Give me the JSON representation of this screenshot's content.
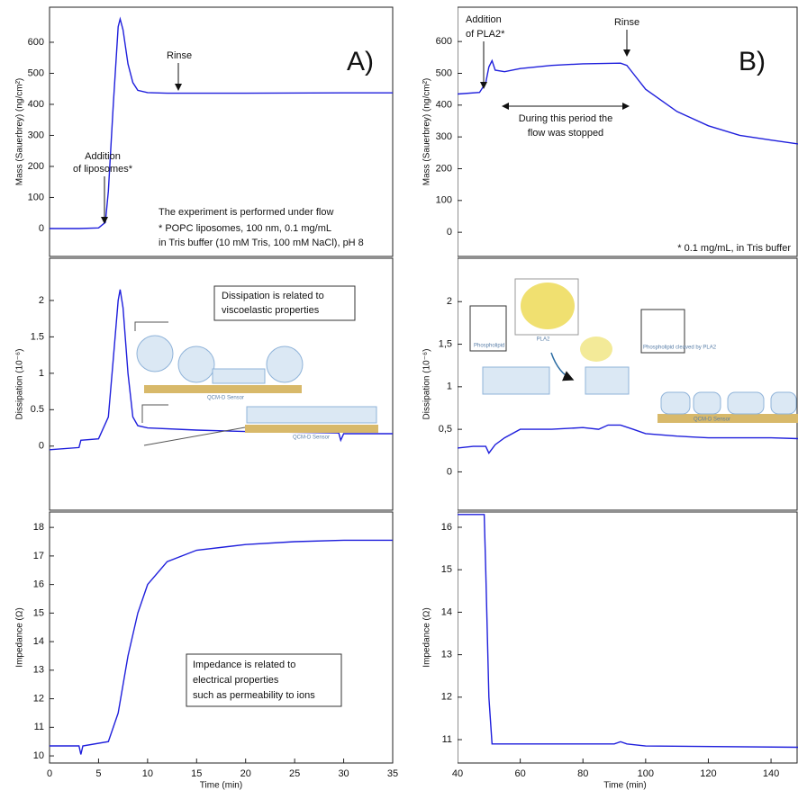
{
  "chart_data": [
    {
      "type": "line",
      "ylabel": "Mass (Sauerbrey) (ng/cm²)",
      "xlim": [
        0,
        35
      ],
      "ylim": [
        -90,
        713
      ],
      "yticks": [
        0,
        100,
        200,
        300,
        400,
        500,
        600
      ],
      "x": [
        0,
        3,
        5,
        5.7,
        6,
        6.5,
        7,
        7.2,
        7.5,
        8,
        8.5,
        9,
        10,
        12,
        20,
        30,
        35
      ],
      "series": [
        {
          "color": "#1f1fdc",
          "values": [
            0,
            0,
            2,
            20,
            120,
            400,
            650,
            675,
            640,
            530,
            470,
            445,
            438,
            436,
            436,
            437,
            437
          ]
        }
      ],
      "annotations": [
        "A)",
        "Rinse",
        "Addition",
        "of liposomes*",
        "The experiment is performed under flow",
        "* POPC liposomes, 100 nm, 0.1 mg/mL",
        "in Tris buffer (10 mM Tris, 100 mM NaCl), pH 8"
      ]
    },
    {
      "type": "line",
      "ylabel": "Dissipation (10⁻⁶)",
      "xlim": [
        0,
        35
      ],
      "ylim": [
        -0.88,
        2.58
      ],
      "yticks": [
        0,
        0.5,
        1,
        1.5,
        2
      ],
      "x": [
        0,
        3,
        3.2,
        5,
        6,
        6.5,
        7,
        7.2,
        7.5,
        8,
        8.5,
        9,
        10,
        15,
        20,
        29.5,
        29.7,
        30,
        35
      ],
      "series": [
        {
          "color": "#1f1fdc",
          "values": [
            -0.05,
            -0.02,
            0.08,
            0.1,
            0.4,
            1.2,
            2.0,
            2.15,
            1.9,
            1.0,
            0.4,
            0.28,
            0.25,
            0.22,
            0.2,
            0.18,
            0.08,
            0.17,
            0.17
          ]
        }
      ],
      "annotations": [
        "Dissipation is related to",
        "viscoelastic properties",
        "QCM-D Sensor",
        "QCM-D Sensor"
      ]
    },
    {
      "type": "line",
      "ylabel": "Impedance (Ω)",
      "xlabel": "Time (min)",
      "xlim": [
        0,
        35
      ],
      "ylim": [
        9.75,
        18.54
      ],
      "xticks": [
        0,
        5,
        10,
        15,
        20,
        25,
        30,
        35
      ],
      "yticks": [
        10,
        11,
        12,
        13,
        14,
        15,
        16,
        17,
        18
      ],
      "x": [
        0,
        3,
        3.2,
        3.4,
        6,
        7,
        8,
        9,
        10,
        12,
        15,
        20,
        25,
        30,
        35
      ],
      "series": [
        {
          "color": "#1f1fdc",
          "values": [
            10.35,
            10.35,
            10.05,
            10.35,
            10.5,
            11.5,
            13.5,
            15,
            16,
            16.8,
            17.2,
            17.4,
            17.5,
            17.55,
            17.55
          ]
        }
      ],
      "annotations": [
        "Impedance is related to",
        "electrical properties",
        "such as permeability to ions"
      ]
    },
    {
      "type": "line",
      "ylabel": "Mass (Sauerbrey) (ng/cm²)",
      "xlim": [
        40,
        148.6
      ],
      "ylim": [
        -76,
        708
      ],
      "yticks": [
        0,
        100,
        200,
        300,
        400,
        500,
        600
      ],
      "x": [
        40,
        47,
        49,
        50,
        51,
        52,
        55,
        60,
        70,
        80,
        92,
        94,
        96,
        100,
        110,
        120,
        130,
        140,
        148.6
      ],
      "series": [
        {
          "color": "#1f1fdc",
          "values": [
            435,
            440,
            470,
            520,
            540,
            510,
            505,
            515,
            525,
            530,
            532,
            525,
            500,
            450,
            380,
            335,
            305,
            290,
            278
          ]
        }
      ],
      "annotations": [
        "B)",
        "Addition",
        "of PLA2*",
        "Rinse",
        "During this period the",
        "flow was stopped",
        "* 0.1 mg/mL, in Tris buffer"
      ]
    },
    {
      "type": "line",
      "ylabel": "Dissipation (10⁻⁶)",
      "xlim": [
        40,
        148.6
      ],
      "ylim": [
        -0.45,
        2.51
      ],
      "yticks": [
        0,
        {
          "value": 0.5,
          "label": "0,5"
        },
        1,
        {
          "value": 1.5,
          "label": "1,5"
        },
        2
      ],
      "x": [
        40,
        45,
        49,
        50,
        52,
        55,
        60,
        70,
        80,
        85,
        88,
        92,
        96,
        100,
        110,
        120,
        140,
        148.6
      ],
      "series": [
        {
          "color": "#1f1fdc",
          "values": [
            0.28,
            0.3,
            0.3,
            0.22,
            0.32,
            0.4,
            0.5,
            0.5,
            0.52,
            0.5,
            0.55,
            0.55,
            0.5,
            0.45,
            0.42,
            0.4,
            0.4,
            0.39
          ]
        }
      ],
      "annotations": [
        "Phospholipid",
        "PLA2",
        "Phospholipid cleaved by PLA2",
        "QCM-D Sensor"
      ]
    },
    {
      "type": "line",
      "ylabel": "Impedance (Ω)",
      "xlabel": "Time (min)",
      "xlim": [
        40,
        148.6
      ],
      "ylim": [
        10.45,
        16.36
      ],
      "xticks": [
        40,
        60,
        80,
        100,
        120,
        140
      ],
      "yticks": [
        11,
        12,
        13,
        14,
        15,
        16
      ],
      "x": [
        40,
        48,
        48.5,
        49,
        50,
        51,
        60,
        90,
        92,
        94,
        100,
        148.6
      ],
      "series": [
        {
          "color": "#1f1fdc",
          "values": [
            16.3,
            16.3,
            16.3,
            15,
            12,
            10.9,
            10.9,
            10.9,
            10.95,
            10.9,
            10.85,
            10.82
          ]
        }
      ]
    }
  ]
}
